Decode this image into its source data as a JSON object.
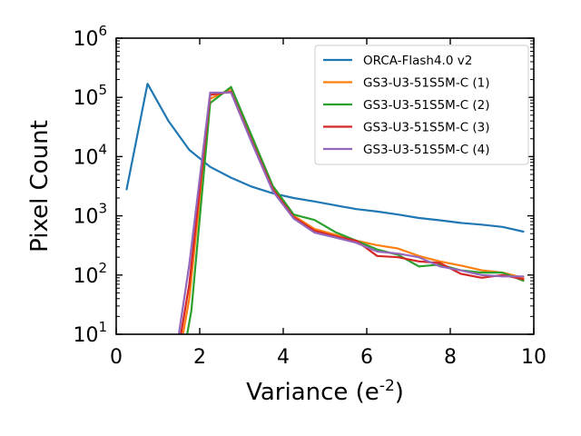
{
  "chart_data": {
    "type": "line",
    "xlabel": "Variance (e-2)",
    "xlabel_base": "Variance (e",
    "xlabel_sup": "-2",
    "xlabel_close": ")",
    "ylabel": "Pixel Count",
    "xlim": [
      0,
      10
    ],
    "ylim": [
      10,
      1000000
    ],
    "yscale": "log",
    "grid": false,
    "legend_position": "top-right",
    "x_ticks": [
      {
        "value": 0,
        "label": "0"
      },
      {
        "value": 2,
        "label": "2"
      },
      {
        "value": 4,
        "label": "4"
      },
      {
        "value": 6,
        "label": "6"
      },
      {
        "value": 8,
        "label": "8"
      },
      {
        "value": 10,
        "label": "10"
      }
    ],
    "y_ticks": [
      {
        "value": 10,
        "base": "10",
        "exp": "1"
      },
      {
        "value": 100,
        "base": "10",
        "exp": "2"
      },
      {
        "value": 1000,
        "base": "10",
        "exp": "3"
      },
      {
        "value": 10000,
        "base": "10",
        "exp": "4"
      },
      {
        "value": 100000,
        "base": "10",
        "exp": "5"
      },
      {
        "value": 1000000,
        "base": "10",
        "exp": "6"
      }
    ],
    "series": [
      {
        "name": "ORCA-Flash4.0 v2",
        "color": "#1f77b4",
        "points": [
          [
            0.25,
            2800
          ],
          [
            0.75,
            170000
          ],
          [
            1.25,
            40000
          ],
          [
            1.75,
            13000
          ],
          [
            2.25,
            6700
          ],
          [
            2.75,
            4400
          ],
          [
            3.25,
            3100
          ],
          [
            3.75,
            2400
          ],
          [
            4.25,
            2000
          ],
          [
            4.75,
            1750
          ],
          [
            5.25,
            1500
          ],
          [
            5.75,
            1300
          ],
          [
            6.25,
            1180
          ],
          [
            6.75,
            1050
          ],
          [
            7.25,
            920
          ],
          [
            7.75,
            840
          ],
          [
            8.25,
            760
          ],
          [
            8.75,
            710
          ],
          [
            9.25,
            650
          ],
          [
            9.75,
            540
          ]
        ]
      },
      {
        "name": "GS3-U3-51S5M-C (1)",
        "color": "#ff7f0e",
        "points": [
          [
            1.6,
            10
          ],
          [
            1.75,
            40
          ],
          [
            2.25,
            95000
          ],
          [
            2.75,
            140000
          ],
          [
            3.25,
            20000
          ],
          [
            3.75,
            3000
          ],
          [
            4.25,
            1000
          ],
          [
            4.75,
            600
          ],
          [
            5.25,
            480
          ],
          [
            5.75,
            380
          ],
          [
            6.25,
            320
          ],
          [
            6.75,
            280
          ],
          [
            7.25,
            210
          ],
          [
            7.75,
            170
          ],
          [
            8.25,
            145
          ],
          [
            8.75,
            120
          ],
          [
            9.25,
            110
          ],
          [
            9.75,
            90
          ]
        ]
      },
      {
        "name": "GS3-U3-51S5M-C (2)",
        "color": "#2ca02c",
        "points": [
          [
            1.7,
            10
          ],
          [
            1.8,
            25
          ],
          [
            2.25,
            80000
          ],
          [
            2.75,
            150000
          ],
          [
            3.25,
            22000
          ],
          [
            3.75,
            3200
          ],
          [
            4.25,
            1050
          ],
          [
            4.75,
            850
          ],
          [
            5.25,
            530
          ],
          [
            5.75,
            380
          ],
          [
            6.25,
            270
          ],
          [
            6.75,
            220
          ],
          [
            7.25,
            140
          ],
          [
            7.75,
            150
          ],
          [
            8.25,
            120
          ],
          [
            8.75,
            110
          ],
          [
            9.25,
            110
          ],
          [
            9.75,
            80
          ]
        ]
      },
      {
        "name": "GS3-U3-51S5M-C (3)",
        "color": "#d62728",
        "points": [
          [
            1.55,
            10
          ],
          [
            1.75,
            70
          ],
          [
            2.25,
            110000
          ],
          [
            2.75,
            125000
          ],
          [
            3.25,
            18000
          ],
          [
            3.75,
            2800
          ],
          [
            4.25,
            950
          ],
          [
            4.75,
            560
          ],
          [
            5.25,
            450
          ],
          [
            5.75,
            380
          ],
          [
            6.25,
            210
          ],
          [
            6.75,
            200
          ],
          [
            7.25,
            170
          ],
          [
            7.75,
            160
          ],
          [
            8.25,
            105
          ],
          [
            8.75,
            90
          ],
          [
            9.25,
            100
          ],
          [
            9.75,
            85
          ]
        ]
      },
      {
        "name": "GS3-U3-51S5M-C (4)",
        "color": "#9467bd",
        "points": [
          [
            1.5,
            10
          ],
          [
            1.75,
            150
          ],
          [
            2.25,
            120000
          ],
          [
            2.75,
            120000
          ],
          [
            3.25,
            17000
          ],
          [
            3.75,
            2600
          ],
          [
            4.25,
            900
          ],
          [
            4.75,
            520
          ],
          [
            5.25,
            430
          ],
          [
            5.75,
            350
          ],
          [
            6.25,
            250
          ],
          [
            6.75,
            230
          ],
          [
            7.25,
            200
          ],
          [
            7.75,
            140
          ],
          [
            8.25,
            120
          ],
          [
            8.75,
            100
          ],
          [
            9.25,
            95
          ],
          [
            9.75,
            95
          ]
        ]
      }
    ]
  }
}
